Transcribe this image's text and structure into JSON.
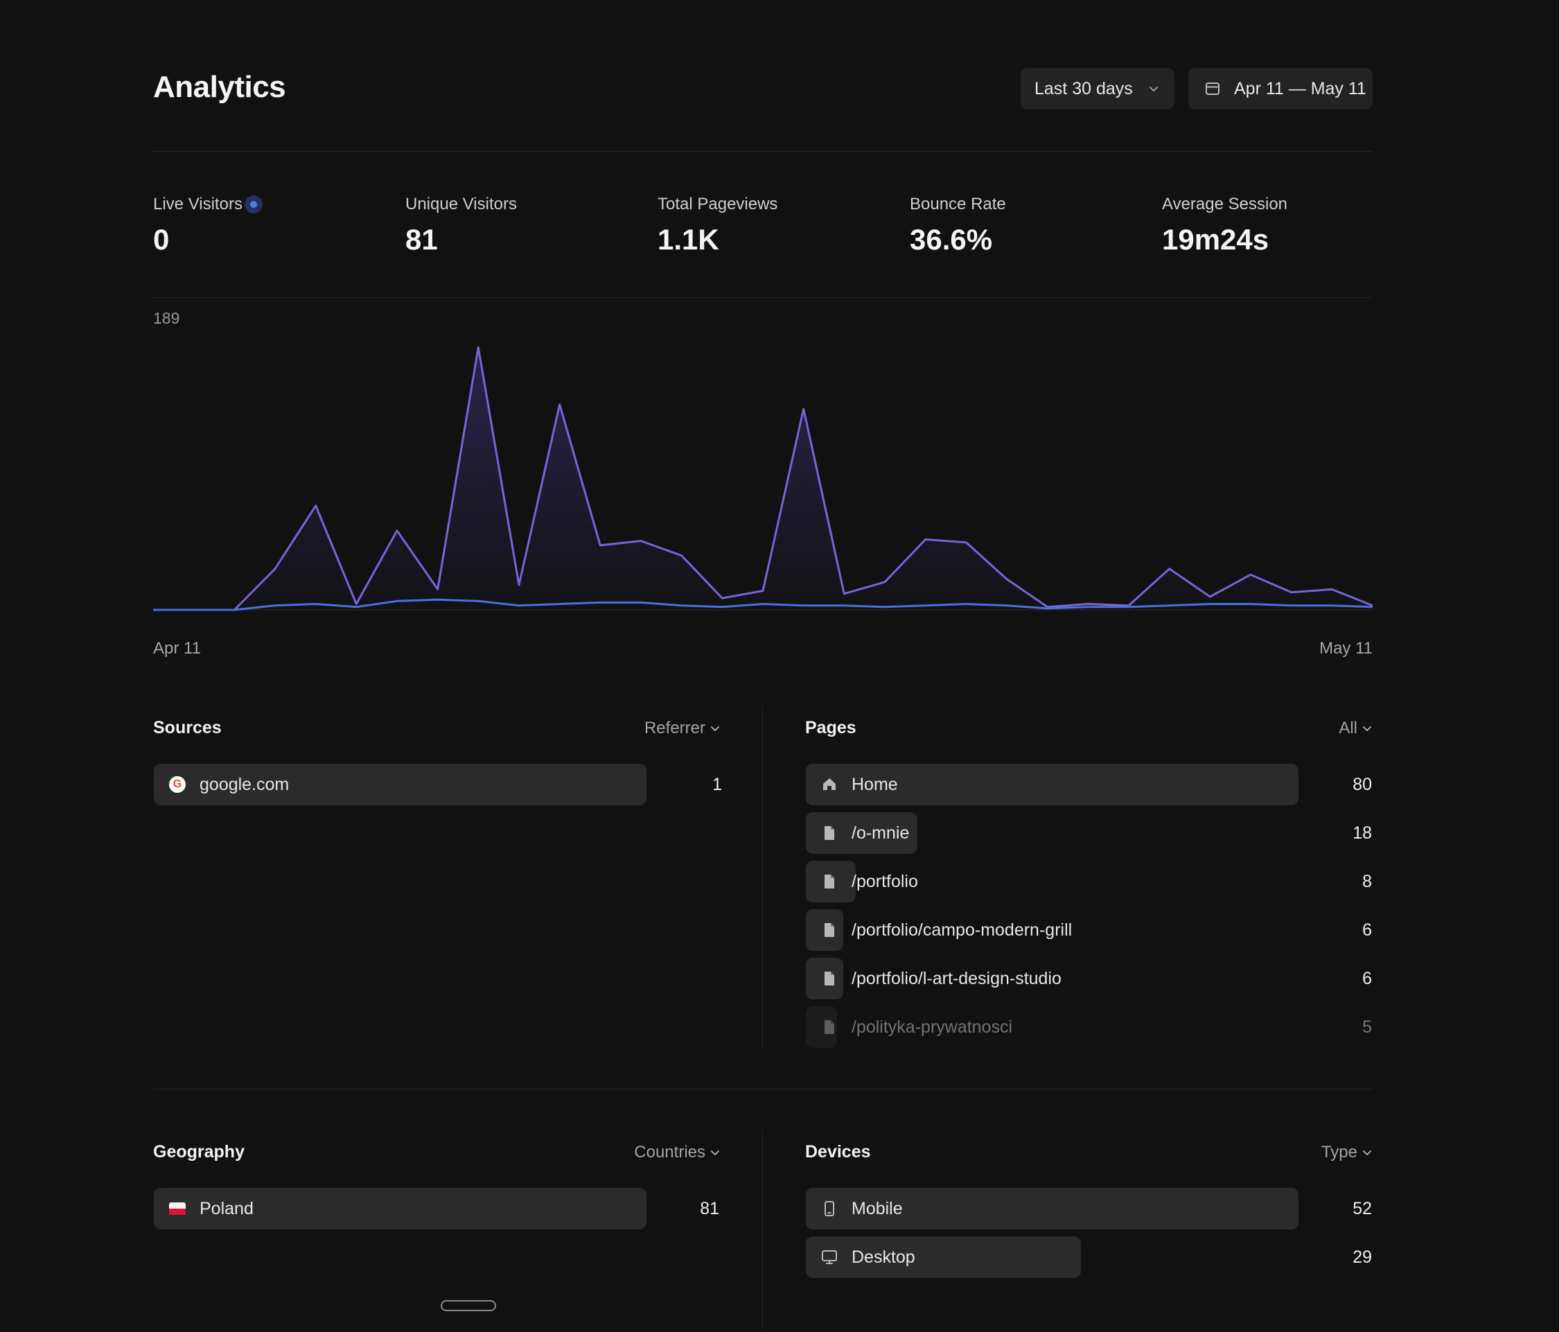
{
  "header": {
    "title": "Analytics",
    "range_label": "Last 30 days",
    "date_label": "Apr 11 — May 11"
  },
  "stats": [
    {
      "label": "Live Visitors",
      "value": "0"
    },
    {
      "label": "Unique Visitors",
      "value": "81"
    },
    {
      "label": "Total Pageviews",
      "value": "1.1K"
    },
    {
      "label": "Bounce Rate",
      "value": "36.6%"
    },
    {
      "label": "Average Session",
      "value": "19m24s"
    }
  ],
  "chart_data": {
    "type": "area",
    "title": "",
    "ylim": [
      0,
      189
    ],
    "y_max_label": "189",
    "x_start_label": "Apr 11",
    "x_end_label": "May 11",
    "grid": false,
    "legend": "none",
    "series": [
      {
        "color": "#7a63d9",
        "values": [
          0,
          0,
          0,
          28,
          71,
          4,
          54,
          14,
          179,
          17,
          140,
          44,
          47,
          37,
          8,
          13,
          137,
          11,
          19,
          48,
          46,
          21,
          2,
          4,
          3,
          28,
          9,
          24,
          12,
          14,
          3
        ]
      },
      {
        "color": "#4d6fe0",
        "values": [
          0,
          0,
          0,
          3,
          4,
          2,
          6,
          7,
          6,
          3,
          4,
          5,
          5,
          3,
          2,
          4,
          3,
          3,
          2,
          3,
          4,
          3,
          1,
          2,
          2,
          3,
          4,
          4,
          3,
          3,
          2
        ]
      }
    ]
  },
  "sources": {
    "title": "Sources",
    "filter": "Referrer",
    "items": [
      {
        "label": "google.com",
        "value": 1,
        "icon": "google-icon"
      }
    ]
  },
  "pages": {
    "title": "Pages",
    "filter": "All",
    "items": [
      {
        "label": "Home",
        "value": 80,
        "icon": "home-icon"
      },
      {
        "label": "/o-mnie",
        "value": 18,
        "icon": "file-icon"
      },
      {
        "label": "/portfolio",
        "value": 8,
        "icon": "file-icon"
      },
      {
        "label": "/portfolio/campo-modern-grill",
        "value": 6,
        "icon": "file-icon"
      },
      {
        "label": "/portfolio/l-art-design-studio",
        "value": 6,
        "icon": "file-icon"
      },
      {
        "label": "/polityka-prywatnosci",
        "value": 5,
        "icon": "file-icon"
      }
    ]
  },
  "geography": {
    "title": "Geography",
    "filter": "Countries",
    "items": [
      {
        "label": "Poland",
        "value": 81,
        "icon": "poland-flag-icon"
      }
    ]
  },
  "devices": {
    "title": "Devices",
    "filter": "Type",
    "items": [
      {
        "label": "Mobile",
        "value": 52,
        "icon": "mobile-icon"
      },
      {
        "label": "Desktop",
        "value": 29,
        "icon": "desktop-icon"
      }
    ]
  }
}
